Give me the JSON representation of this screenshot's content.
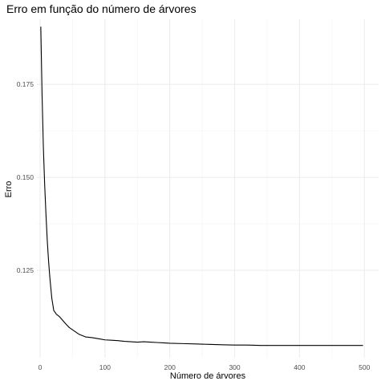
{
  "chart_data": {
    "type": "line",
    "title": "Erro em função do número de árvores",
    "xlabel": "Número de árvores",
    "ylabel": "Erro",
    "xlim": [
      -5,
      522
    ],
    "ylim": [
      0.1015,
      0.1925
    ],
    "x_ticks": [
      0,
      100,
      200,
      300,
      400,
      500
    ],
    "x_tick_labels": [
      "0",
      "100",
      "200",
      "300",
      "400",
      "500"
    ],
    "y_ticks": [
      0.125,
      0.15,
      0.175
    ],
    "y_tick_labels": [
      "0.125",
      "0.150",
      "0.175"
    ],
    "x_minor_ticks": [
      50,
      150,
      250,
      350,
      450
    ],
    "y_minor_ticks": [
      0.1375,
      0.1625
    ],
    "grid": true,
    "line_color": "#000000",
    "series": [
      {
        "x": [
          1,
          3,
          5,
          7,
          9,
          11,
          13,
          15,
          18,
          21,
          25,
          30,
          35,
          40,
          45,
          50,
          60,
          70,
          80,
          90,
          100,
          110,
          120,
          130,
          140,
          150,
          160,
          170,
          180,
          190,
          200,
          220,
          240,
          260,
          280,
          300,
          320,
          340,
          360,
          380,
          400,
          420,
          440,
          460,
          480,
          498
        ],
        "y": [
          0.1905,
          0.172,
          0.158,
          0.148,
          0.14,
          0.133,
          0.1275,
          0.123,
          0.1175,
          0.1142,
          0.1132,
          0.1125,
          0.1115,
          0.1105,
          0.1096,
          0.109,
          0.1078,
          0.1071,
          0.1069,
          0.1066,
          0.1063,
          0.1062,
          0.1061,
          0.1059,
          0.1058,
          0.1057,
          0.1058,
          0.1057,
          0.1056,
          0.1055,
          0.1054,
          0.1053,
          0.1052,
          0.1051,
          0.105,
          0.1049,
          0.1049,
          0.1048,
          0.1048,
          0.1048,
          0.1048,
          0.1048,
          0.1048,
          0.1048,
          0.1048,
          0.1048
        ]
      }
    ]
  }
}
